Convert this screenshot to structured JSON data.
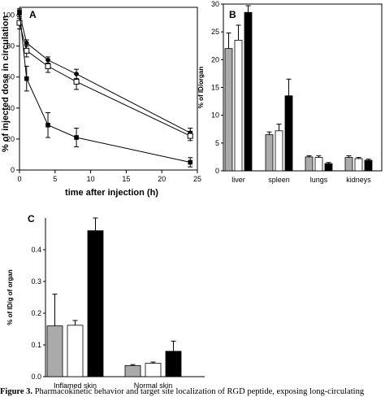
{
  "caption": {
    "label": "Figure 3.",
    "text": "Pharmacokinetic behavior and target site localization of RGD peptide, exposing long-circulating"
  },
  "colors": {
    "gray": "#aaaaaa",
    "white": "#ffffff",
    "black": "#000000"
  },
  "chart_data": [
    {
      "panel": "A",
      "type": "line",
      "xlabel": "time after injection (h)",
      "ylabel": "% of injected dose in circulation",
      "xlim": [
        0,
        25
      ],
      "ylim": [
        0,
        105
      ],
      "xticks": [
        0,
        5,
        10,
        15,
        20,
        25
      ],
      "yticks": [
        0,
        20,
        40,
        60,
        80,
        100
      ],
      "x": [
        0,
        1,
        4,
        8,
        24
      ],
      "series": [
        {
          "marker": "filled-circle",
          "values": [
            101,
            82,
            71,
            62,
            24
          ],
          "errors": [
            3,
            2,
            2,
            3,
            3
          ]
        },
        {
          "marker": "open-square",
          "values": [
            95,
            77,
            67,
            57,
            22
          ],
          "errors": [
            4,
            4,
            4,
            5,
            3
          ]
        },
        {
          "marker": "filled-square",
          "values": [
            102,
            59,
            29,
            21,
            5
          ],
          "errors": [
            2,
            8,
            8,
            6,
            3
          ]
        }
      ]
    },
    {
      "panel": "B",
      "type": "bar",
      "ylabel": "% of ID/organ",
      "ylim": [
        0,
        30
      ],
      "yticks": [
        0,
        5,
        10,
        15,
        20,
        25,
        30
      ],
      "categories": [
        "liver",
        "spleen",
        "lungs",
        "kidneys"
      ],
      "series": [
        {
          "color": "gray",
          "values": [
            22.0,
            6.5,
            2.5,
            2.4
          ],
          "errors": [
            2.8,
            0.5,
            0.2,
            0.3
          ]
        },
        {
          "color": "white",
          "values": [
            23.5,
            7.2,
            2.4,
            2.2
          ],
          "errors": [
            2.7,
            1.2,
            0.3,
            0.2
          ]
        },
        {
          "color": "black",
          "values": [
            28.5,
            13.5,
            1.3,
            1.9
          ],
          "errors": [
            1.2,
            3.0,
            0.2,
            0.2
          ]
        }
      ]
    },
    {
      "panel": "C",
      "type": "bar",
      "ylabel": "% of ID/g of organ",
      "ylim": [
        0,
        0.5
      ],
      "yticks": [
        0.0,
        0.1,
        0.2,
        0.3,
        0.4
      ],
      "categories": [
        "Inflamed skin",
        "Normal skin"
      ],
      "series": [
        {
          "color": "gray",
          "values": [
            0.16,
            0.035
          ],
          "errors": [
            0.1,
            0.003
          ]
        },
        {
          "color": "white",
          "values": [
            0.162,
            0.042
          ],
          "errors": [
            0.015,
            0.004
          ]
        },
        {
          "color": "black",
          "values": [
            0.46,
            0.08
          ],
          "errors": [
            0.04,
            0.032
          ]
        }
      ]
    }
  ]
}
